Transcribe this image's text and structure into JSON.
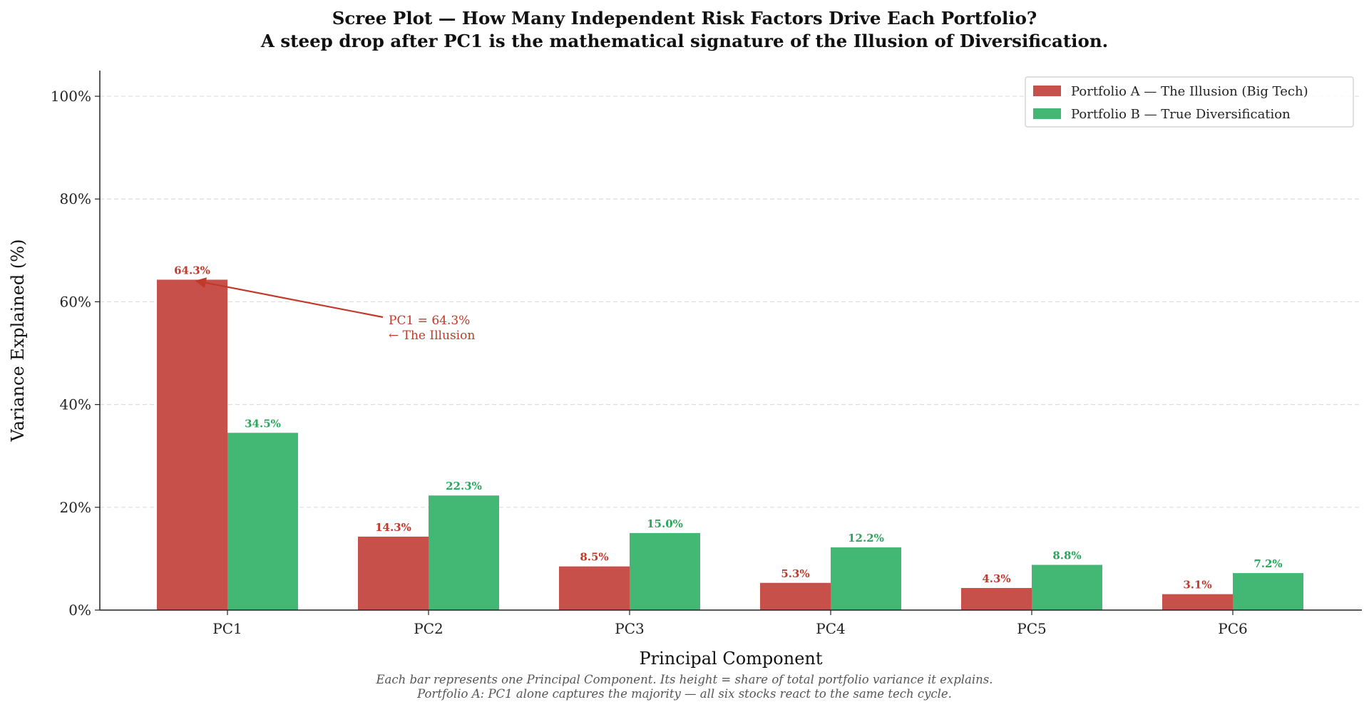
{
  "chart_data": {
    "type": "bar",
    "title": "Scree Plot — How Many Independent Risk Factors Drive Each Portfolio?",
    "subtitle": "A steep drop after PC1 is the mathematical signature of the Illusion of Diversification.",
    "xlabel": "Principal Component",
    "ylabel": "Variance Explained (%)",
    "ylim": [
      0,
      105
    ],
    "yticks": [
      0,
      20,
      40,
      60,
      80,
      100
    ],
    "ytick_labels": [
      "0%",
      "20%",
      "40%",
      "60%",
      "80%",
      "100%"
    ],
    "grid": "horizontal dashed",
    "legend_position": "top-right",
    "categories": [
      "PC1",
      "PC2",
      "PC3",
      "PC4",
      "PC5",
      "PC6"
    ],
    "series": [
      {
        "name": "Portfolio A — The Illusion (Big Tech)",
        "color": "#c8504a",
        "label_color": "#c0392b",
        "values": [
          64.3,
          14.3,
          8.5,
          5.3,
          4.3,
          3.1
        ],
        "labels": [
          "64.3%",
          "14.3%",
          "8.5%",
          "5.3%",
          "4.3%",
          "3.1%"
        ]
      },
      {
        "name": "Portfolio B — True Diversification",
        "color": "#42b874",
        "label_color": "#27a85a",
        "values": [
          34.5,
          22.3,
          15.0,
          12.2,
          8.8,
          7.2
        ],
        "labels": [
          "34.5%",
          "22.3%",
          "15.0%",
          "12.2%",
          "8.8%",
          "7.2%"
        ]
      }
    ],
    "annotation": {
      "lines": [
        "PC1 = 64.3%",
        "← The Illusion"
      ],
      "color": "#c0392b",
      "points_to": {
        "category": "PC1",
        "series": 0,
        "value": 64.3
      }
    },
    "caption": [
      "Each bar represents one Principal Component. Its height = share of total portfolio variance it explains.",
      "Portfolio A: PC1 alone captures the majority — all six stocks react to the same tech cycle."
    ]
  }
}
